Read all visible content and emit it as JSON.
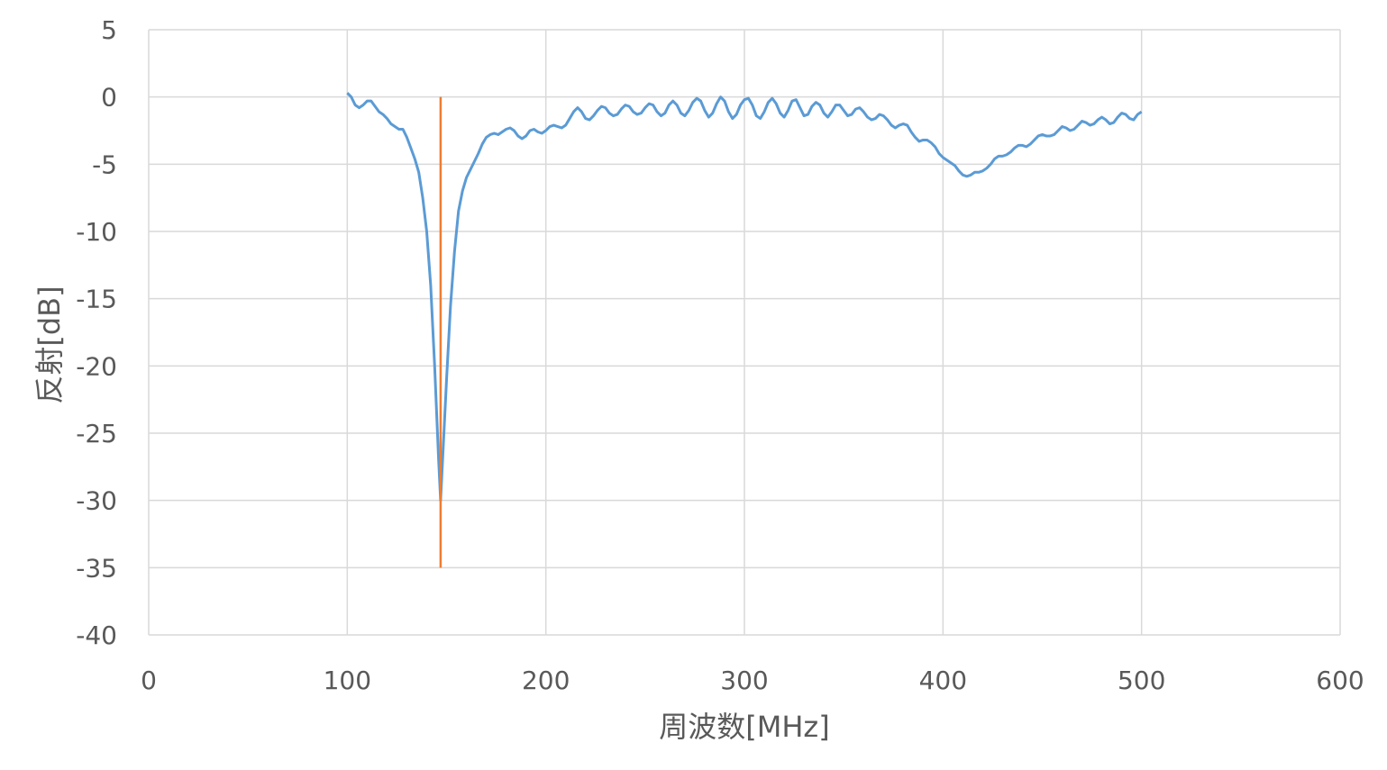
{
  "chart_data": {
    "type": "line",
    "title": "",
    "xlabel": "周波数[MHz]",
    "ylabel": "反射[dB]",
    "xlim": [
      0,
      600
    ],
    "ylim": [
      -40,
      5
    ],
    "xticks": [
      0,
      100,
      200,
      300,
      400,
      500,
      600
    ],
    "yticks": [
      5,
      0,
      -5,
      -10,
      -15,
      -20,
      -25,
      -30,
      -35,
      -40
    ],
    "grid": true,
    "legend": "none",
    "series": [
      {
        "color": "#5b9bd5",
        "points": [
          [
            100,
            0.3
          ],
          [
            102,
            0.0
          ],
          [
            104,
            -0.6
          ],
          [
            106,
            -0.8
          ],
          [
            108,
            -0.6
          ],
          [
            110,
            -0.3
          ],
          [
            112,
            -0.3
          ],
          [
            114,
            -0.7
          ],
          [
            116,
            -1.1
          ],
          [
            118,
            -1.3
          ],
          [
            120,
            -1.6
          ],
          [
            122,
            -2.0
          ],
          [
            124,
            -2.2
          ],
          [
            126,
            -2.4
          ],
          [
            128,
            -2.4
          ],
          [
            130,
            -3.0
          ],
          [
            132,
            -3.8
          ],
          [
            134,
            -4.6
          ],
          [
            136,
            -5.6
          ],
          [
            138,
            -7.5
          ],
          [
            140,
            -10.0
          ],
          [
            142,
            -14.0
          ],
          [
            144,
            -20.0
          ],
          [
            146,
            -27.0
          ],
          [
            147,
            -30.0
          ],
          [
            148,
            -27.0
          ],
          [
            150,
            -21.0
          ],
          [
            152,
            -15.5
          ],
          [
            154,
            -11.5
          ],
          [
            156,
            -8.5
          ],
          [
            158,
            -7.0
          ],
          [
            160,
            -6.0
          ],
          [
            162,
            -5.4
          ],
          [
            164,
            -4.8
          ],
          [
            166,
            -4.2
          ],
          [
            168,
            -3.5
          ],
          [
            170,
            -3.0
          ],
          [
            172,
            -2.8
          ],
          [
            174,
            -2.7
          ],
          [
            176,
            -2.8
          ],
          [
            178,
            -2.6
          ],
          [
            180,
            -2.4
          ],
          [
            182,
            -2.3
          ],
          [
            184,
            -2.5
          ],
          [
            186,
            -2.9
          ],
          [
            188,
            -3.1
          ],
          [
            190,
            -2.9
          ],
          [
            192,
            -2.5
          ],
          [
            194,
            -2.4
          ],
          [
            196,
            -2.6
          ],
          [
            198,
            -2.7
          ],
          [
            200,
            -2.5
          ],
          [
            202,
            -2.2
          ],
          [
            204,
            -2.1
          ],
          [
            206,
            -2.2
          ],
          [
            208,
            -2.3
          ],
          [
            210,
            -2.1
          ],
          [
            212,
            -1.6
          ],
          [
            214,
            -1.1
          ],
          [
            216,
            -0.8
          ],
          [
            218,
            -1.1
          ],
          [
            220,
            -1.6
          ],
          [
            222,
            -1.7
          ],
          [
            224,
            -1.4
          ],
          [
            226,
            -1.0
          ],
          [
            228,
            -0.7
          ],
          [
            230,
            -0.8
          ],
          [
            232,
            -1.2
          ],
          [
            234,
            -1.4
          ],
          [
            236,
            -1.3
          ],
          [
            238,
            -0.9
          ],
          [
            240,
            -0.6
          ],
          [
            242,
            -0.7
          ],
          [
            244,
            -1.1
          ],
          [
            246,
            -1.3
          ],
          [
            248,
            -1.2
          ],
          [
            250,
            -0.8
          ],
          [
            252,
            -0.5
          ],
          [
            254,
            -0.6
          ],
          [
            256,
            -1.1
          ],
          [
            258,
            -1.4
          ],
          [
            260,
            -1.2
          ],
          [
            262,
            -0.6
          ],
          [
            264,
            -0.3
          ],
          [
            266,
            -0.6
          ],
          [
            268,
            -1.2
          ],
          [
            270,
            -1.4
          ],
          [
            272,
            -1.0
          ],
          [
            274,
            -0.4
          ],
          [
            276,
            -0.1
          ],
          [
            278,
            -0.3
          ],
          [
            280,
            -1.0
          ],
          [
            282,
            -1.5
          ],
          [
            284,
            -1.2
          ],
          [
            286,
            -0.5
          ],
          [
            288,
            0.0
          ],
          [
            290,
            -0.3
          ],
          [
            292,
            -1.1
          ],
          [
            294,
            -1.6
          ],
          [
            296,
            -1.3
          ],
          [
            298,
            -0.6
          ],
          [
            300,
            -0.2
          ],
          [
            302,
            -0.1
          ],
          [
            304,
            -0.6
          ],
          [
            306,
            -1.4
          ],
          [
            308,
            -1.6
          ],
          [
            310,
            -1.1
          ],
          [
            312,
            -0.4
          ],
          [
            314,
            -0.1
          ],
          [
            316,
            -0.5
          ],
          [
            318,
            -1.2
          ],
          [
            320,
            -1.5
          ],
          [
            322,
            -1.0
          ],
          [
            324,
            -0.3
          ],
          [
            326,
            -0.2
          ],
          [
            328,
            -0.8
          ],
          [
            330,
            -1.4
          ],
          [
            332,
            -1.3
          ],
          [
            334,
            -0.7
          ],
          [
            336,
            -0.4
          ],
          [
            338,
            -0.6
          ],
          [
            340,
            -1.2
          ],
          [
            342,
            -1.5
          ],
          [
            344,
            -1.1
          ],
          [
            346,
            -0.6
          ],
          [
            348,
            -0.6
          ],
          [
            350,
            -1.0
          ],
          [
            352,
            -1.4
          ],
          [
            354,
            -1.3
          ],
          [
            356,
            -0.9
          ],
          [
            358,
            -0.8
          ],
          [
            360,
            -1.1
          ],
          [
            362,
            -1.5
          ],
          [
            364,
            -1.7
          ],
          [
            366,
            -1.6
          ],
          [
            368,
            -1.3
          ],
          [
            370,
            -1.4
          ],
          [
            372,
            -1.7
          ],
          [
            374,
            -2.1
          ],
          [
            376,
            -2.3
          ],
          [
            378,
            -2.1
          ],
          [
            380,
            -2.0
          ],
          [
            382,
            -2.1
          ],
          [
            384,
            -2.6
          ],
          [
            386,
            -3.0
          ],
          [
            388,
            -3.3
          ],
          [
            390,
            -3.2
          ],
          [
            392,
            -3.2
          ],
          [
            394,
            -3.4
          ],
          [
            396,
            -3.7
          ],
          [
            398,
            -4.2
          ],
          [
            400,
            -4.5
          ],
          [
            402,
            -4.7
          ],
          [
            404,
            -4.9
          ],
          [
            406,
            -5.1
          ],
          [
            408,
            -5.5
          ],
          [
            410,
            -5.8
          ],
          [
            412,
            -5.9
          ],
          [
            414,
            -5.8
          ],
          [
            416,
            -5.6
          ],
          [
            418,
            -5.6
          ],
          [
            420,
            -5.5
          ],
          [
            422,
            -5.3
          ],
          [
            424,
            -5.0
          ],
          [
            426,
            -4.6
          ],
          [
            428,
            -4.4
          ],
          [
            430,
            -4.4
          ],
          [
            432,
            -4.3
          ],
          [
            434,
            -4.1
          ],
          [
            436,
            -3.8
          ],
          [
            438,
            -3.6
          ],
          [
            440,
            -3.6
          ],
          [
            442,
            -3.7
          ],
          [
            444,
            -3.5
          ],
          [
            446,
            -3.2
          ],
          [
            448,
            -2.9
          ],
          [
            450,
            -2.8
          ],
          [
            452,
            -2.9
          ],
          [
            454,
            -2.9
          ],
          [
            456,
            -2.8
          ],
          [
            458,
            -2.5
          ],
          [
            460,
            -2.2
          ],
          [
            462,
            -2.3
          ],
          [
            464,
            -2.5
          ],
          [
            466,
            -2.4
          ],
          [
            468,
            -2.1
          ],
          [
            470,
            -1.8
          ],
          [
            472,
            -1.9
          ],
          [
            474,
            -2.1
          ],
          [
            476,
            -2.0
          ],
          [
            478,
            -1.7
          ],
          [
            480,
            -1.5
          ],
          [
            482,
            -1.7
          ],
          [
            484,
            -2.0
          ],
          [
            486,
            -1.9
          ],
          [
            488,
            -1.5
          ],
          [
            490,
            -1.2
          ],
          [
            492,
            -1.3
          ],
          [
            494,
            -1.6
          ],
          [
            496,
            -1.7
          ],
          [
            498,
            -1.3
          ],
          [
            500,
            -1.1
          ]
        ]
      },
      {
        "color": "#ed7d31",
        "points": [
          [
            147,
            0
          ],
          [
            147,
            -35
          ]
        ]
      }
    ]
  }
}
